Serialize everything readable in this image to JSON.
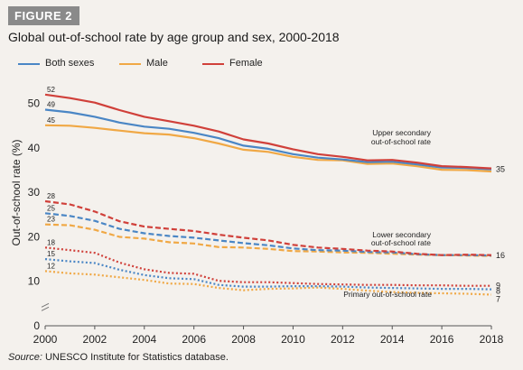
{
  "figure_label": "FIGURE 2",
  "source": {
    "label": "Source:",
    "text": " UNESCO Institute for Statistics database."
  },
  "colors": {
    "both": "#4a86c5",
    "male": "#f0a845",
    "female": "#d0403a",
    "badge": "#8a8a8a",
    "background": "#f4f1ed"
  },
  "chart_data": {
    "type": "line",
    "title": "Global out-of-school rate by age group and sex, 2000-2018",
    "ylabel": "Out-of-school rate (%)",
    "xlabel": "",
    "ylim": [
      0,
      55
    ],
    "xlim": [
      2000,
      2018
    ],
    "x_ticks": [
      "2000",
      "2002",
      "2004",
      "2006",
      "2008",
      "2010",
      "2012",
      "2014",
      "2016",
      "2018"
    ],
    "y_ticks": [
      "0",
      "10",
      "20",
      "30",
      "40",
      "50"
    ],
    "grid": false,
    "legend": {
      "placement": "top-left",
      "entries": [
        {
          "name": "Both sexes",
          "color_key": "both"
        },
        {
          "name": "Male",
          "color_key": "male"
        },
        {
          "name": "Female",
          "color_key": "female"
        }
      ]
    },
    "x": [
      2000,
      2001,
      2002,
      2003,
      2004,
      2005,
      2006,
      2007,
      2008,
      2009,
      2010,
      2011,
      2012,
      2013,
      2014,
      2015,
      2016,
      2017,
      2018
    ],
    "groups": [
      {
        "label": "Upper secondary out-of-school rate",
        "label_lines": [
          "Upper secondary",
          "out-of-school rate"
        ],
        "dash": "solid",
        "end_label": "35",
        "start_labels": [
          "52",
          "49",
          "45"
        ],
        "series": [
          {
            "name": "Both sexes",
            "color_key": "both",
            "values": [
              48.6,
              48.0,
              47.0,
              45.7,
              44.8,
              44.3,
              43.4,
              42.2,
              40.5,
              39.8,
              38.6,
              37.8,
              37.4,
              36.8,
              36.9,
              36.3,
              35.6,
              35.5,
              35.2
            ]
          },
          {
            "name": "Male",
            "color_key": "male",
            "values": [
              45.1,
              45.0,
              44.5,
              43.9,
              43.3,
              43.0,
              42.2,
              41.0,
              39.6,
              39.1,
              38.0,
              37.3,
              37.2,
              36.4,
              36.5,
              35.9,
              35.1,
              35.0,
              34.7
            ]
          },
          {
            "name": "Female",
            "color_key": "female",
            "values": [
              52.0,
              51.2,
              50.2,
              48.5,
              47.0,
              46.0,
              45.0,
              43.7,
              41.9,
              41.0,
              39.7,
              38.6,
              38.0,
              37.2,
              37.3,
              36.7,
              35.9,
              35.7,
              35.4
            ]
          }
        ]
      },
      {
        "label": "Lower secondary out-of-school rate",
        "label_lines": [
          "Lower secondary",
          "out-of-school rate"
        ],
        "dash": "dashed",
        "end_label": "16",
        "start_labels": [
          "28",
          "25",
          "23"
        ],
        "series": [
          {
            "name": "Both sexes",
            "color_key": "both",
            "values": [
              25.3,
              24.7,
              23.6,
              21.8,
              20.8,
              20.2,
              19.8,
              19.2,
              18.6,
              18.1,
              17.4,
              17.0,
              16.9,
              16.6,
              16.5,
              16.1,
              15.9,
              15.9,
              15.8
            ]
          },
          {
            "name": "Male",
            "color_key": "male",
            "values": [
              22.8,
              22.6,
              21.6,
              20.0,
              19.6,
              18.8,
              18.5,
              17.7,
              17.6,
              17.3,
              16.8,
              16.7,
              16.5,
              16.4,
              16.2,
              16.0,
              15.9,
              15.8,
              15.7
            ]
          },
          {
            "name": "Female",
            "color_key": "female",
            "values": [
              28.0,
              27.3,
              25.7,
              23.5,
              22.3,
              21.8,
              21.3,
              20.5,
              19.8,
              19.2,
              18.2,
              17.6,
              17.3,
              16.9,
              16.7,
              16.2,
              15.9,
              16.0,
              15.9
            ]
          }
        ]
      },
      {
        "label": "Primary out-of-school rate",
        "label_lines": [
          "Primary out-of-school rate"
        ],
        "dash": "dotted",
        "end_labels": [
          "9",
          "8",
          "7"
        ],
        "start_labels": [
          "18",
          "15",
          "12"
        ],
        "series": [
          {
            "name": "Both sexes",
            "color_key": "both",
            "values": [
              15.0,
              14.5,
              14.1,
              12.6,
              11.4,
              10.7,
              10.5,
              9.2,
              8.8,
              8.8,
              8.9,
              8.9,
              8.8,
              8.6,
              8.5,
              8.4,
              8.3,
              8.3,
              8.2
            ]
          },
          {
            "name": "Male",
            "color_key": "male",
            "values": [
              12.3,
              11.8,
              11.5,
              10.9,
              10.3,
              9.5,
              9.4,
              8.5,
              8.0,
              8.3,
              8.4,
              8.6,
              8.3,
              7.9,
              7.6,
              7.4,
              7.3,
              7.2,
              7.0
            ]
          },
          {
            "name": "Female",
            "color_key": "female",
            "values": [
              17.6,
              17.0,
              16.4,
              14.2,
              12.7,
              11.9,
              11.7,
              10.1,
              9.8,
              9.8,
              9.6,
              9.4,
              9.3,
              9.2,
              9.2,
              9.1,
              9.1,
              9.0,
              9.0
            ]
          }
        ]
      }
    ]
  }
}
